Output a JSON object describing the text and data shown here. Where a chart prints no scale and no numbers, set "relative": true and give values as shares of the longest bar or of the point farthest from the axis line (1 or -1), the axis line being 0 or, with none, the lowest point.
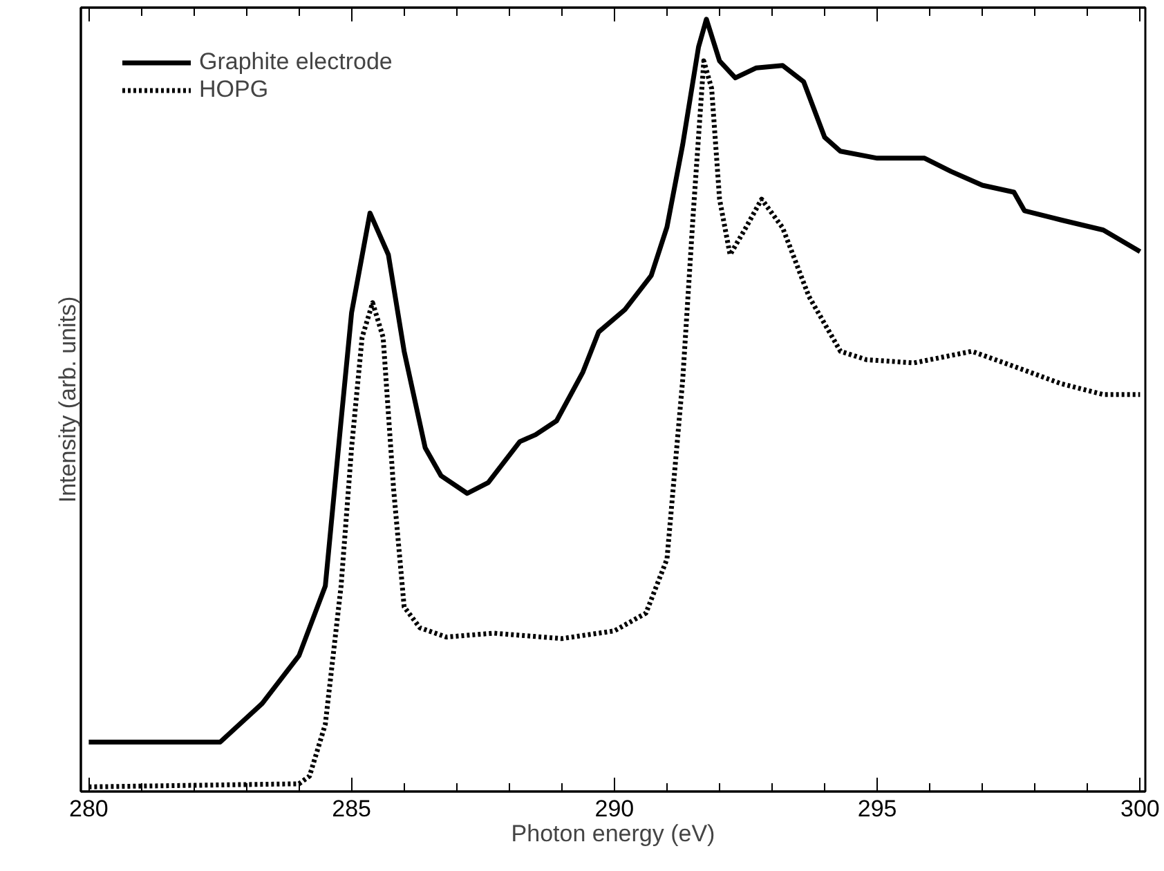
{
  "chart_data": {
    "type": "line",
    "xlabel": "Photon energy (eV)",
    "ylabel": "Intensity (arb. units)",
    "relative": true,
    "xlim": [
      279.85,
      300.1
    ],
    "xticks": [
      280,
      {
        "value": 281,
        "label": null
      },
      {
        "value": 282,
        "label": null
      },
      {
        "value": 283,
        "label": null
      },
      {
        "value": 284,
        "label": null
      },
      285,
      {
        "value": 286,
        "label": null
      },
      {
        "value": 287,
        "label": null
      },
      {
        "value": 288,
        "label": null
      },
      {
        "value": 289,
        "label": null
      },
      290,
      {
        "value": 291,
        "label": null
      },
      {
        "value": 292,
        "label": null
      },
      {
        "value": 293,
        "label": null
      },
      {
        "value": 294,
        "label": null
      },
      295,
      {
        "value": 296,
        "label": null
      },
      {
        "value": 297,
        "label": null
      },
      {
        "value": 298,
        "label": null
      },
      {
        "value": 299,
        "label": null
      },
      300
    ],
    "tick_labels": "x",
    "legend": "top left",
    "grid": false,
    "series": [
      {
        "name": "Graphite electrode",
        "color": "#000000",
        "line_style": "solid",
        "x": [
          280,
          282.5,
          283.3,
          284.0,
          284.5,
          284.8,
          285.0,
          285.35,
          285.7,
          286.0,
          286.4,
          286.7,
          287.2,
          287.6,
          288.2,
          288.5,
          288.9,
          289.4,
          289.7,
          290.2,
          290.7,
          291.0,
          291.3,
          291.6,
          291.75,
          292.0,
          292.3,
          292.7,
          293.2,
          293.6,
          294.0,
          294.3,
          295.0,
          295.9,
          296.4,
          297.0,
          297.6,
          297.8,
          298.5,
          299.3,
          300.0
        ],
        "values": [
          0.064,
          0.064,
          0.114,
          0.176,
          0.266,
          0.48,
          0.62,
          0.749,
          0.695,
          0.57,
          0.445,
          0.409,
          0.386,
          0.4,
          0.453,
          0.462,
          0.48,
          0.543,
          0.595,
          0.624,
          0.668,
          0.731,
          0.838,
          0.964,
          1.0,
          0.946,
          0.924,
          0.937,
          0.94,
          0.919,
          0.847,
          0.829,
          0.82,
          0.82,
          0.803,
          0.785,
          0.776,
          0.752,
          0.74,
          0.727,
          0.699
        ]
      },
      {
        "name": "HOPG",
        "color": "#000000",
        "line_style": "dotted",
        "x": [
          280,
          284.0,
          284.2,
          284.5,
          284.8,
          285.0,
          285.2,
          285.4,
          285.6,
          285.8,
          286.0,
          286.3,
          286.8,
          287.7,
          289.0,
          290.0,
          290.6,
          291.0,
          291.3,
          291.5,
          291.7,
          291.85,
          292.0,
          292.2,
          292.5,
          292.8,
          293.2,
          293.7,
          294.3,
          294.8,
          295.7,
          296.8,
          297.7,
          298.5,
          299.3,
          300.0
        ],
        "values": [
          0.006,
          0.01,
          0.02,
          0.087,
          0.266,
          0.445,
          0.588,
          0.633,
          0.588,
          0.391,
          0.239,
          0.212,
          0.2,
          0.205,
          0.198,
          0.208,
          0.231,
          0.301,
          0.534,
          0.749,
          0.946,
          0.91,
          0.767,
          0.695,
          0.73,
          0.767,
          0.73,
          0.641,
          0.57,
          0.559,
          0.555,
          0.57,
          0.548,
          0.528,
          0.514,
          0.514
        ]
      }
    ]
  }
}
